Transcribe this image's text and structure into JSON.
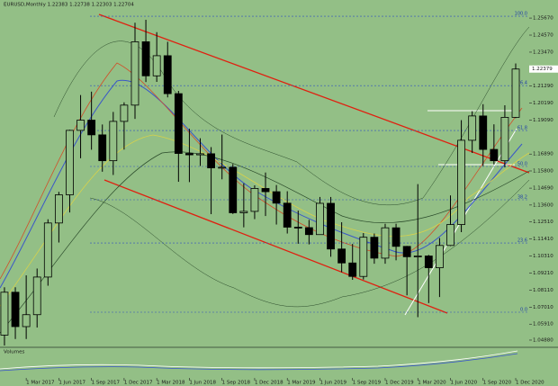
{
  "chart_data": {
    "type": "candlestick",
    "title": "EURUSD,Monthly 1.22383 1.22738 1.22303 1.22704",
    "volume_title": "Volumes",
    "current_price": {
      "value": 1.22379,
      "label": "1.22379"
    },
    "x": [
      0,
      1,
      2,
      3,
      4,
      5,
      6,
      7,
      8,
      9,
      10,
      11,
      12,
      13,
      14,
      15,
      16,
      17,
      18,
      19,
      20,
      21,
      22,
      23,
      24,
      25,
      26,
      27,
      28,
      29,
      30,
      31,
      32,
      33,
      34,
      35,
      36,
      37,
      38,
      39,
      40,
      41,
      42,
      43,
      44,
      45,
      46,
      47
    ],
    "open": [
      1.052,
      1.0797,
      1.0575,
      1.0652,
      1.0895,
      1.1244,
      1.1426,
      1.1842,
      1.1908,
      1.1813,
      1.1646,
      1.19,
      1.2005,
      1.2414,
      1.2194,
      1.2324,
      1.2079,
      1.1693,
      1.1684,
      1.1691,
      1.16,
      1.1604,
      1.131,
      1.1319,
      1.1467,
      1.1446,
      1.1372,
      1.1217,
      1.1214,
      1.1169,
      1.1371,
      1.1076,
      1.0986,
      1.0899,
      1.1152,
      1.1017,
      1.1213,
      1.1093,
      1.1026,
      1.1031,
      1.0955,
      1.1099,
      1.1234,
      1.1778,
      1.1935,
      1.1719,
      1.1646,
      1.1926
    ],
    "high": [
      1.0829,
      1.0829,
      1.0906,
      1.095,
      1.1268,
      1.1445,
      1.1846,
      1.207,
      1.2092,
      1.188,
      1.1961,
      1.2023,
      1.2537,
      1.2556,
      1.2476,
      1.2414,
      1.2097,
      1.1852,
      1.1791,
      1.1734,
      1.1815,
      1.1625,
      1.15,
      1.1487,
      1.157,
      1.1489,
      1.1449,
      1.1324,
      1.1264,
      1.1412,
      1.1412,
      1.1249,
      1.1109,
      1.1179,
      1.1176,
      1.1239,
      1.1239,
      1.1096,
      1.1495,
      1.1038,
      1.1147,
      1.1422,
      1.1908,
      1.1966,
      1.2011,
      1.1881,
      1.2004,
      1.2274
    ],
    "low": [
      1.034,
      1.0495,
      1.0495,
      1.0569,
      1.0839,
      1.1118,
      1.1312,
      1.1662,
      1.1717,
      1.1575,
      1.1554,
      1.1718,
      1.1916,
      1.2154,
      1.2155,
      1.2055,
      1.151,
      1.1508,
      1.1612,
      1.1301,
      1.1526,
      1.1302,
      1.1216,
      1.1269,
      1.1289,
      1.1234,
      1.1176,
      1.111,
      1.1106,
      1.1181,
      1.1026,
      1.0926,
      1.0877,
      1.0879,
      1.0981,
      1.0981,
      1.1003,
      1.0777,
      1.0636,
      1.0727,
      1.0766,
      1.1095,
      1.1185,
      1.1696,
      1.1612,
      1.1622,
      1.1603,
      1.1921
    ],
    "close": [
      1.0797,
      1.0575,
      1.0652,
      1.0895,
      1.1244,
      1.1426,
      1.1842,
      1.1908,
      1.1813,
      1.1646,
      1.19,
      1.2005,
      1.2414,
      1.2194,
      1.2324,
      1.2079,
      1.1693,
      1.1684,
      1.1691,
      1.16,
      1.1604,
      1.131,
      1.1319,
      1.1467,
      1.1446,
      1.1372,
      1.1217,
      1.1214,
      1.1169,
      1.1371,
      1.1076,
      1.0986,
      1.0899,
      1.1152,
      1.1017,
      1.1213,
      1.1093,
      1.1026,
      1.1031,
      1.0955,
      1.1099,
      1.1234,
      1.1778,
      1.1935,
      1.1719,
      1.1646,
      1.1926,
      1.2238
    ],
    "xlim": [
      -0.41,
      48.24
    ],
    "xticks": [
      {
        "value": 2,
        "label": "1 Mar 2017"
      },
      {
        "value": 5,
        "label": "1 Jun 2017"
      },
      {
        "value": 8,
        "label": "1 Sep 2017"
      },
      {
        "value": 11,
        "label": "1 Dec 2017"
      },
      {
        "value": 14,
        "label": "1 Mar 2018"
      },
      {
        "value": 17,
        "label": "1 Jun 2018"
      },
      {
        "value": 20,
        "label": "1 Sep 2018"
      },
      {
        "value": 23,
        "label": "1 Dec 2018"
      },
      {
        "value": 26,
        "label": "1 Mar 2019"
      },
      {
        "value": 29,
        "label": "1 Jun 2019"
      },
      {
        "value": 32,
        "label": "1 Sep 2019"
      },
      {
        "value": 35,
        "label": "1 Dec 2019"
      },
      {
        "value": 38,
        "label": "1 Mar 2020"
      },
      {
        "value": 41,
        "label": "1 Jun 2020"
      },
      {
        "value": 44,
        "label": "1 Sep 2020"
      },
      {
        "value": 47,
        "label": "1 Dec 2020"
      }
    ],
    "ylim": [
      1.0453,
      1.2643
    ],
    "yticks": [
      {
        "value": 1.2567,
        "label": "1.25670"
      },
      {
        "value": 1.2457,
        "label": "1.24570"
      },
      {
        "value": 1.2347,
        "label": "1.23470"
      },
      {
        "value": 1.2129,
        "label": "1.21290"
      },
      {
        "value": 1.2019,
        "label": "1.20190"
      },
      {
        "value": 1.1909,
        "label": "1.19090"
      },
      {
        "value": 1.1689,
        "label": "1.16890"
      },
      {
        "value": 1.158,
        "label": "1.15800"
      },
      {
        "value": 1.1469,
        "label": "1.14690"
      },
      {
        "value": 1.136,
        "label": "1.13600"
      },
      {
        "value": 1.1251,
        "label": "1.12510"
      },
      {
        "value": 1.1141,
        "label": "1.11410"
      },
      {
        "value": 1.1031,
        "label": "1.10310"
      },
      {
        "value": 1.0921,
        "label": "1.09210"
      },
      {
        "value": 1.0811,
        "label": "1.08110"
      },
      {
        "value": 1.0701,
        "label": "1.07010"
      },
      {
        "value": 1.0591,
        "label": "1.05910"
      },
      {
        "value": 1.0488,
        "label": "1.04880"
      }
    ],
    "fib_levels": [
      {
        "value": 1.2579,
        "label": "100.0"
      },
      {
        "value": 1.2131,
        "label": "76.4"
      },
      {
        "value": 1.1841,
        "label": "61.8"
      },
      {
        "value": 1.1609,
        "label": "50.0"
      },
      {
        "value": 1.1394,
        "label": "38.2"
      },
      {
        "value": 1.1115,
        "label": "23.6"
      },
      {
        "value": 1.0668,
        "label": "0.0"
      }
    ],
    "bull_color": "#93bf86",
    "bear_color": "#000000"
  }
}
